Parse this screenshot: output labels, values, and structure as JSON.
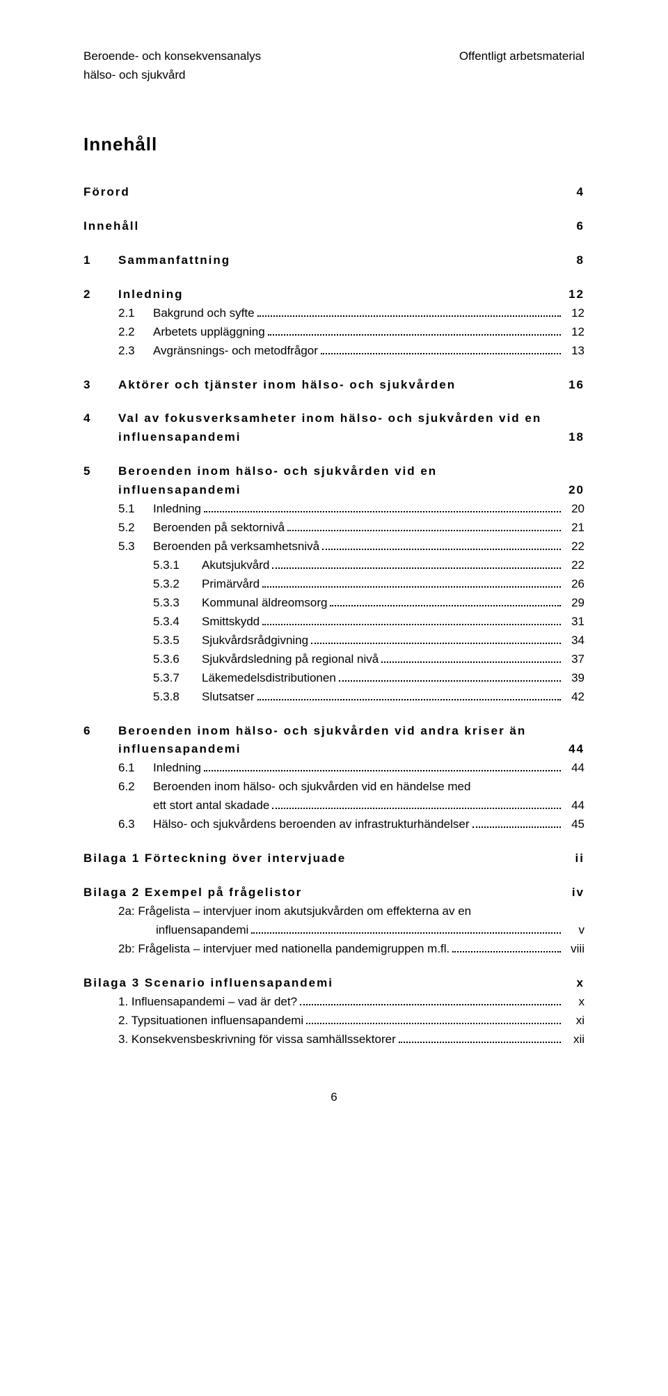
{
  "header": {
    "left1": "Beroende- och konsekvensanalys",
    "left2": "hälso- och sjukvård",
    "right1": "Offentligt arbetsmaterial"
  },
  "title": "Innehåll",
  "toc": {
    "forord": {
      "label": "Förord",
      "page": "4"
    },
    "innehall": {
      "label": "Innehåll",
      "page": "6"
    },
    "s1": {
      "num": "1",
      "label": "Sammanfattning",
      "page": "8"
    },
    "s2": {
      "num": "2",
      "label": "Inledning",
      "page": "12"
    },
    "s2_1": {
      "num": "2.1",
      "label": "Bakgrund och syfte",
      "page": "12"
    },
    "s2_2": {
      "num": "2.2",
      "label": "Arbetets uppläggning",
      "page": "12"
    },
    "s2_3": {
      "num": "2.3",
      "label": "Avgränsnings- och metodfrågor",
      "page": "13"
    },
    "s3": {
      "num": "3",
      "label": "Aktörer och tjänster inom hälso- och sjukvården",
      "page": "16"
    },
    "s4": {
      "num": "4",
      "label1": "Val av fokusverksamheter inom hälso- och sjukvården vid en",
      "label2": "influensapandemi",
      "page": "18"
    },
    "s5": {
      "num": "5",
      "label1": "Beroenden inom hälso- och sjukvården vid en",
      "label2": "influensapandemi",
      "page": "20"
    },
    "s5_1": {
      "num": "5.1",
      "label": "Inledning",
      "page": "20"
    },
    "s5_2": {
      "num": "5.2",
      "label": "Beroenden på sektornivå",
      "page": "21"
    },
    "s5_3": {
      "num": "5.3",
      "label": "Beroenden på verksamhetsnivå",
      "page": "22"
    },
    "s5_3_1": {
      "num": "5.3.1",
      "label": "Akutsjukvård",
      "page": "22"
    },
    "s5_3_2": {
      "num": "5.3.2",
      "label": "Primärvård",
      "page": "26"
    },
    "s5_3_3": {
      "num": "5.3.3",
      "label": "Kommunal äldreomsorg",
      "page": "29"
    },
    "s5_3_4": {
      "num": "5.3.4",
      "label": "Smittskydd",
      "page": "31"
    },
    "s5_3_5": {
      "num": "5.3.5",
      "label": "Sjukvårdsrådgivning",
      "page": "34"
    },
    "s5_3_6": {
      "num": "5.3.6",
      "label": "Sjukvårdsledning på regional nivå",
      "page": "37"
    },
    "s5_3_7": {
      "num": "5.3.7",
      "label": "Läkemedelsdistributionen",
      "page": "39"
    },
    "s5_3_8": {
      "num": "5.3.8",
      "label": "Slutsatser",
      "page": "42"
    },
    "s6": {
      "num": "6",
      "label1": "Beroenden inom hälso- och sjukvården vid andra kriser än",
      "label2": "influensapandemi",
      "page": "44"
    },
    "s6_1": {
      "num": "6.1",
      "label": "Inledning",
      "page": "44"
    },
    "s6_2": {
      "num": "6.2",
      "label1": "Beroenden inom hälso- och sjukvården vid en händelse med",
      "label2": "ett stort antal skadade",
      "page": "44"
    },
    "s6_3": {
      "num": "6.3",
      "label": "Hälso- och sjukvårdens beroenden av infrastrukturhändelser",
      "page": "45"
    },
    "b1": {
      "label": "Bilaga 1 Förteckning över intervjuade",
      "page": "ii"
    },
    "b2": {
      "label": "Bilaga 2 Exempel på frågelistor",
      "page": "iv"
    },
    "b2a": {
      "label1": "2a: Frågelista – intervjuer inom akutsjukvården om effekterna av en",
      "label2": "influensapandemi",
      "page": "v"
    },
    "b2b": {
      "label": "2b: Frågelista – intervjuer med nationella pandemigruppen m.fl.",
      "page": "viii"
    },
    "b3": {
      "label": "Bilaga 3 Scenario influensapandemi",
      "page": "x"
    },
    "b3_1": {
      "label": "1. Influensapandemi – vad är det?",
      "page": "x"
    },
    "b3_2": {
      "label": "2. Typsituationen influensapandemi",
      "page": "xi"
    },
    "b3_3": {
      "label": "3. Konsekvensbeskrivning för vissa samhällssektorer",
      "page": "xii"
    }
  },
  "pageNumber": "6"
}
